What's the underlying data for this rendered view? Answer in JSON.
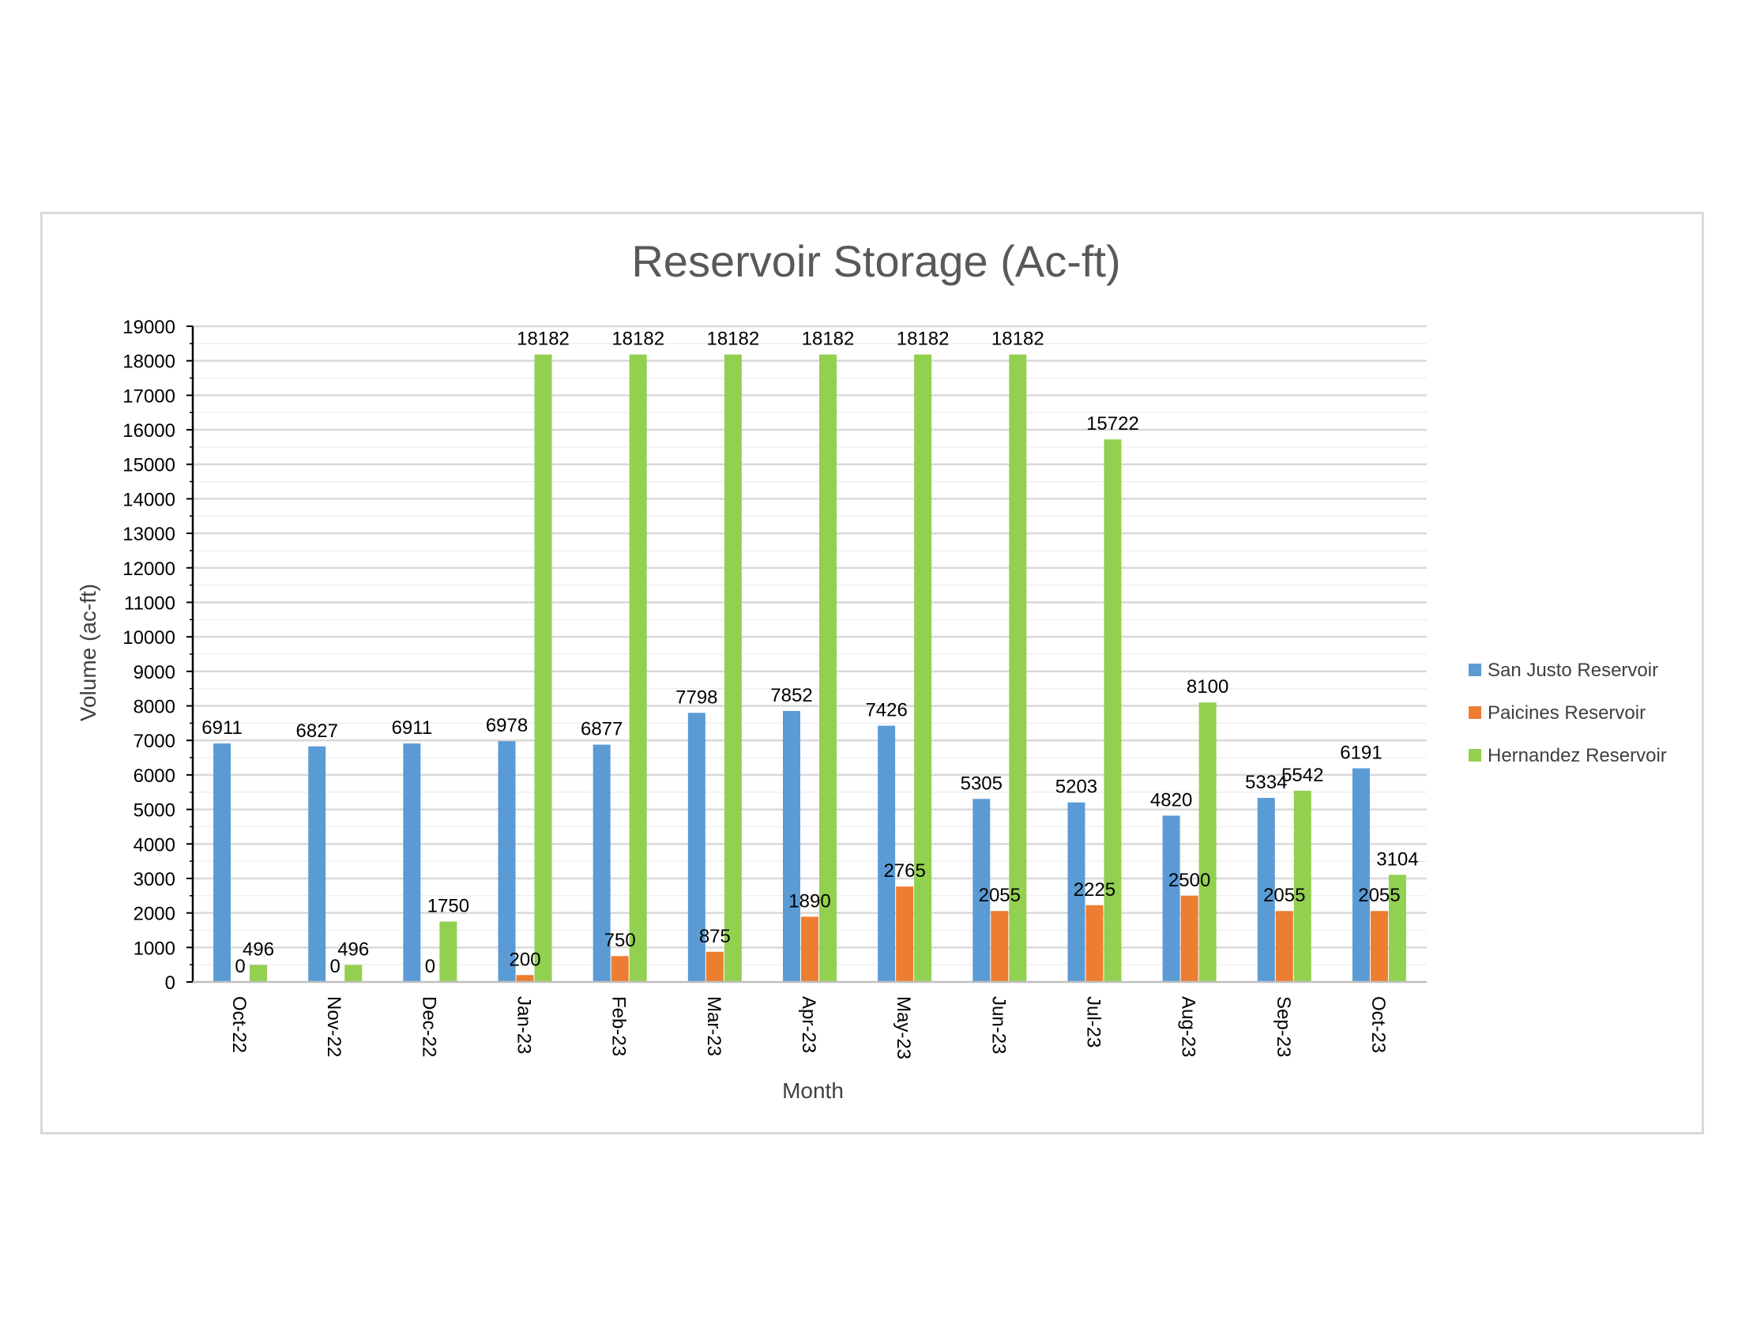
{
  "chart_data": {
    "type": "bar",
    "title": "Reservoir Storage (Ac-ft)",
    "xlabel": "Month",
    "ylabel": "Volume (ac-ft)",
    "categories": [
      "Oct-22",
      "Nov-22",
      "Dec-22",
      "Jan-23",
      "Feb-23",
      "Mar-23",
      "Apr-23",
      "May-23",
      "Jun-23",
      "Jul-23",
      "Aug-23",
      "Sep-23",
      "Oct-23"
    ],
    "ylim": [
      0,
      19000
    ],
    "ytick_step": 1000,
    "grid": true,
    "legend_position": "right",
    "series": [
      {
        "name": "San Justo Reservoir",
        "color": "#5b9bd5",
        "values": [
          6911,
          6827,
          6911,
          6978,
          6877,
          7798,
          7852,
          7426,
          5305,
          5203,
          4820,
          5334,
          6191
        ]
      },
      {
        "name": "Paicines Reservoir",
        "color": "#ed7d31",
        "values": [
          0,
          0,
          0,
          200,
          750,
          875,
          1890,
          2765,
          2055,
          2225,
          2500,
          2055,
          2055
        ]
      },
      {
        "name": "Hernandez Reservoir",
        "color": "#92d050",
        "values": [
          496,
          496,
          1750,
          18182,
          18182,
          18182,
          18182,
          18182,
          18182,
          15722,
          8100,
          5542,
          3104
        ]
      }
    ]
  }
}
